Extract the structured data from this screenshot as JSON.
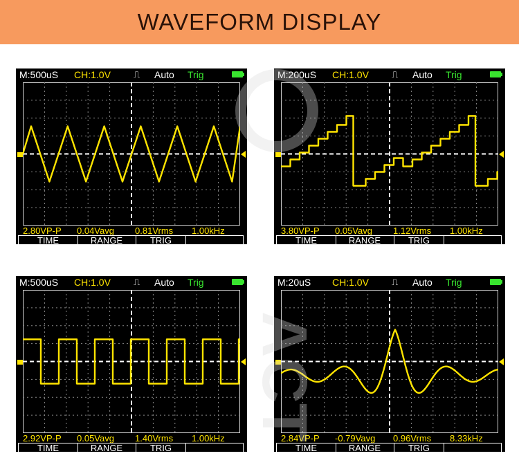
{
  "banner": {
    "title": "WAVEFORM DISPLAY"
  },
  "watermark": {
    "text": "ACT"
  },
  "colors": {
    "banner": "#f79a5e",
    "trace": "#ffe400",
    "trig": "#39e52f",
    "grid": "#8a8a8a"
  },
  "scopes": [
    {
      "waveform": "triangle",
      "status": {
        "timebase": "M:500uS",
        "channel": "CH:1.0V",
        "edge_icon": "rising-edge-icon",
        "mode": "Auto",
        "trig": "Trig",
        "battery_icon": "battery-icon"
      },
      "measurements": [
        "2.80VP-P",
        "0.04Vavg",
        "0.81Vrms",
        "1.00kHz"
      ],
      "menu": [
        "TIME",
        "RANGE",
        "TRIG",
        ""
      ]
    },
    {
      "waveform": "staircase",
      "status": {
        "timebase": "M:200uS",
        "channel": "CH:1.0V",
        "edge_icon": "rising-edge-icon",
        "mode": "Auto",
        "trig": "Trig",
        "battery_icon": "battery-icon"
      },
      "measurements": [
        "3.80VP-P",
        "0.05Vavg",
        "1.12Vrms",
        "1.00kHz"
      ],
      "menu": [
        "TIME",
        "RANGE",
        "TRIG",
        ""
      ]
    },
    {
      "waveform": "square",
      "status": {
        "timebase": "M:500uS",
        "channel": "CH:1.0V",
        "edge_icon": "rising-edge-icon",
        "mode": "Auto",
        "trig": "Trig",
        "battery_icon": "battery-icon"
      },
      "measurements": [
        "2.92VP-P",
        "0.05Vavg",
        "1.40Vrms",
        "1.00kHz"
      ],
      "menu": [
        "TIME",
        "RANGE",
        "TRIG",
        ""
      ]
    },
    {
      "waveform": "damped-burst",
      "status": {
        "timebase": "M:20uS",
        "channel": "CH:1.0V",
        "edge_icon": "rising-edge-icon",
        "mode": "Auto",
        "trig": "Trig",
        "battery_icon": "battery-icon"
      },
      "measurements": [
        "2.84VP-P",
        "-0.79Vavg",
        "0.96Vrms",
        "8.33kHz"
      ],
      "menu": [
        "TIME",
        "RANGE",
        "TRIG",
        ""
      ]
    }
  ]
}
